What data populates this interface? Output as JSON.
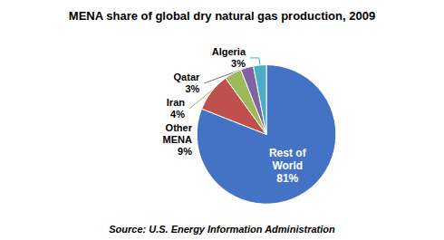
{
  "chart_data": {
    "type": "pie",
    "title": "MENA share of global dry natural gas production, 2009",
    "annotations": [
      "Source: U.S. Energy Information Administration"
    ],
    "categories": [
      "Rest of\nWorld",
      "Other\nMENA",
      "Iran",
      "Qatar",
      "Algeria"
    ],
    "values": [
      81,
      9,
      4,
      3,
      3
    ],
    "value_labels": [
      "81%",
      "9%",
      "4%",
      "3%",
      "3%"
    ],
    "colors": [
      "#4472C4",
      "#C0504D",
      "#9BBB59",
      "#8064A2",
      "#4BACC6"
    ],
    "data_labels": true
  }
}
